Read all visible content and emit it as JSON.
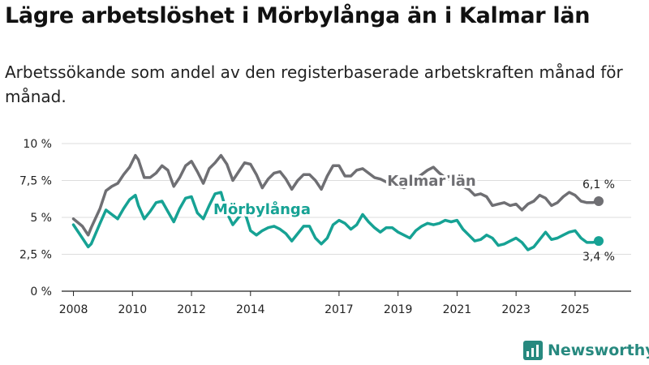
{
  "header": {
    "title": "Lägre arbetslöshet i Mörbylånga än i Kalmar län",
    "subtitle": "Arbetssökande som andel av den registerbaserade arbetskraften månad för månad."
  },
  "brand": {
    "name": "Newsworthy",
    "color": "#27897f"
  },
  "chart_data": {
    "type": "line",
    "title": "Lägre arbetslöshet i Mörbylånga än i Kalmar län",
    "xlabel": "",
    "ylabel": "",
    "xlim": [
      2007.6,
      2026.9
    ],
    "ylim": [
      0,
      10
    ],
    "grid": true,
    "y_ticks": [
      0,
      2.5,
      5,
      7.5,
      10
    ],
    "y_tick_labels": [
      "0 %",
      "2,5 %",
      "5 %",
      "7,5 %",
      "10 %"
    ],
    "x_ticks": [
      2008,
      2010,
      2012,
      2014,
      2017,
      2019,
      2021,
      2023,
      2025
    ],
    "x_tick_labels": [
      "2008",
      "2010",
      "2012",
      "2014",
      "2017",
      "2019",
      "2021",
      "2023",
      "2025"
    ],
    "series": [
      {
        "name": "Kalmar län",
        "color": "#6f6f73",
        "end_label": "6,1 %",
        "x": [
          2008.0,
          2008.3,
          2008.5,
          2008.6,
          2008.9,
          2009.1,
          2009.3,
          2009.5,
          2009.7,
          2009.9,
          2010.1,
          2010.2,
          2010.4,
          2010.6,
          2010.8,
          2011.0,
          2011.2,
          2011.4,
          2011.6,
          2011.8,
          2012.0,
          2012.2,
          2012.4,
          2012.6,
          2012.8,
          2013.0,
          2013.2,
          2013.4,
          2013.6,
          2013.8,
          2014.0,
          2014.2,
          2014.4,
          2014.6,
          2014.8,
          2015.0,
          2015.2,
          2015.4,
          2015.6,
          2015.8,
          2016.0,
          2016.2,
          2016.4,
          2016.6,
          2016.8,
          2017.0,
          2017.2,
          2017.4,
          2017.6,
          2017.8,
          2018.0,
          2018.2,
          2018.4,
          2018.6,
          2018.8,
          2019.0,
          2019.2,
          2019.4,
          2019.6,
          2019.8,
          2020.0,
          2020.2,
          2020.4,
          2020.6,
          2020.8,
          2021.0,
          2021.2,
          2021.4,
          2021.6,
          2021.8,
          2022.0,
          2022.2,
          2022.4,
          2022.6,
          2022.8,
          2023.0,
          2023.2,
          2023.4,
          2023.6,
          2023.8,
          2024.0,
          2024.2,
          2024.4,
          2024.6,
          2024.8,
          2025.0,
          2025.2,
          2025.4,
          2025.6,
          2025.8
        ],
        "values": [
          4.9,
          4.4,
          3.8,
          4.3,
          5.6,
          6.8,
          7.1,
          7.3,
          7.9,
          8.4,
          9.2,
          8.9,
          7.7,
          7.7,
          8.0,
          8.5,
          8.2,
          7.1,
          7.7,
          8.5,
          8.8,
          8.1,
          7.3,
          8.3,
          8.7,
          9.2,
          8.6,
          7.5,
          8.1,
          8.7,
          8.6,
          7.9,
          7.0,
          7.6,
          8.0,
          8.1,
          7.6,
          6.9,
          7.5,
          7.9,
          7.9,
          7.5,
          6.9,
          7.8,
          8.5,
          8.5,
          7.8,
          7.8,
          8.2,
          8.3,
          8.0,
          7.7,
          7.6,
          7.4,
          7.2,
          7.1,
          7.0,
          7.2,
          7.6,
          7.9,
          8.2,
          8.4,
          8.0,
          7.7,
          7.8,
          7.8,
          7.1,
          6.9,
          6.5,
          6.6,
          6.4,
          5.8,
          5.9,
          6.0,
          5.8,
          5.9,
          5.5,
          5.9,
          6.1,
          6.5,
          6.3,
          5.8,
          6.0,
          6.4,
          6.7,
          6.5,
          6.1,
          6.0,
          6.0,
          6.1
        ]
      },
      {
        "name": "Mörbylånga",
        "color": "#16a294",
        "end_label": "3,4 %",
        "x": [
          2008.0,
          2008.3,
          2008.5,
          2008.6,
          2008.9,
          2009.1,
          2009.3,
          2009.5,
          2009.7,
          2009.9,
          2010.1,
          2010.2,
          2010.4,
          2010.6,
          2010.8,
          2011.0,
          2011.2,
          2011.4,
          2011.6,
          2011.8,
          2012.0,
          2012.2,
          2012.4,
          2012.6,
          2012.8,
          2013.0,
          2013.2,
          2013.4,
          2013.6,
          2013.8,
          2014.0,
          2014.2,
          2014.4,
          2014.6,
          2014.8,
          2015.0,
          2015.2,
          2015.4,
          2015.6,
          2015.8,
          2016.0,
          2016.2,
          2016.4,
          2016.6,
          2016.8,
          2017.0,
          2017.2,
          2017.4,
          2017.6,
          2017.8,
          2018.0,
          2018.2,
          2018.4,
          2018.6,
          2018.8,
          2019.0,
          2019.2,
          2019.4,
          2019.6,
          2019.8,
          2020.0,
          2020.2,
          2020.4,
          2020.6,
          2020.8,
          2021.0,
          2021.2,
          2021.4,
          2021.6,
          2021.8,
          2022.0,
          2022.2,
          2022.4,
          2022.6,
          2022.8,
          2023.0,
          2023.2,
          2023.4,
          2023.6,
          2023.8,
          2024.0,
          2024.2,
          2024.4,
          2024.6,
          2024.8,
          2025.0,
          2025.2,
          2025.4,
          2025.6,
          2025.8
        ],
        "values": [
          4.5,
          3.6,
          3.0,
          3.2,
          4.6,
          5.5,
          5.2,
          4.9,
          5.6,
          6.2,
          6.5,
          5.8,
          4.9,
          5.4,
          6.0,
          6.1,
          5.4,
          4.7,
          5.6,
          6.3,
          6.4,
          5.3,
          4.9,
          5.8,
          6.6,
          6.7,
          5.3,
          4.5,
          5.0,
          5.4,
          4.1,
          3.8,
          4.1,
          4.3,
          4.4,
          4.2,
          3.9,
          3.4,
          3.9,
          4.4,
          4.4,
          3.6,
          3.2,
          3.6,
          4.5,
          4.8,
          4.6,
          4.2,
          4.5,
          5.2,
          4.7,
          4.3,
          4.0,
          4.3,
          4.3,
          4.0,
          3.8,
          3.6,
          4.1,
          4.4,
          4.6,
          4.5,
          4.6,
          4.8,
          4.7,
          4.8,
          4.2,
          3.8,
          3.4,
          3.5,
          3.8,
          3.6,
          3.1,
          3.2,
          3.4,
          3.6,
          3.3,
          2.8,
          3.0,
          3.5,
          4.0,
          3.5,
          3.6,
          3.8,
          4.0,
          4.1,
          3.6,
          3.3,
          3.3,
          3.4
        ]
      }
    ]
  }
}
